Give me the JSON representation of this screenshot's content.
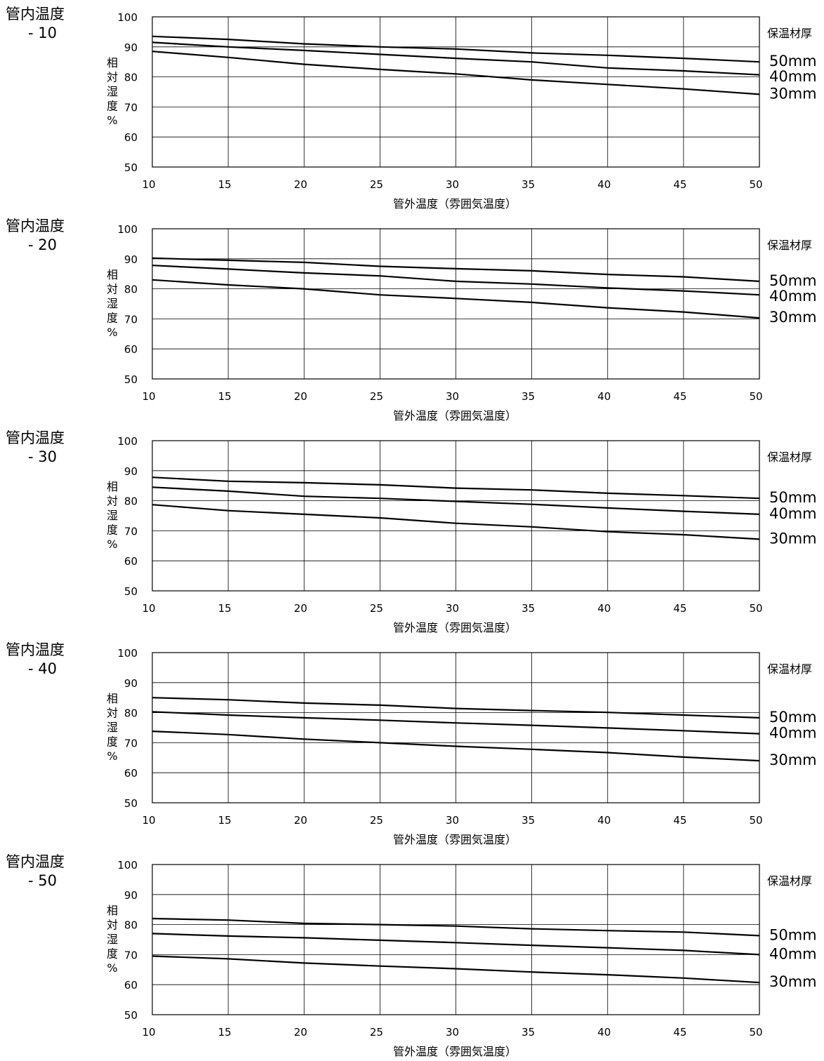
{
  "chart_data": [
    {
      "type": "line",
      "title": "管内温度",
      "subtitle": "- 10",
      "xlabel": "管外温度（雰囲気温度）",
      "ylabel": "相対湿度%",
      "legend_title": "保温材厚",
      "x": [
        10,
        15,
        20,
        25,
        30,
        35,
        40,
        45,
        50
      ],
      "xlim": [
        10,
        50
      ],
      "ylim": [
        50,
        100
      ],
      "xticks": [
        "10",
        "15",
        "20",
        "25",
        "30",
        "35",
        "40",
        "45",
        "50"
      ],
      "yticks": [
        "50",
        "60",
        "70",
        "80",
        "90",
        "100"
      ],
      "grid": true,
      "legend_position": "right",
      "series": [
        {
          "name": "50mm",
          "values": [
            93.5,
            92.5,
            91,
            90,
            89.3,
            88,
            87.2,
            86.2,
            85
          ]
        },
        {
          "name": "40mm",
          "values": [
            91.5,
            90,
            88.8,
            87.5,
            86.2,
            85,
            83,
            82,
            80.7
          ]
        },
        {
          "name": "30mm",
          "values": [
            88.5,
            86.5,
            84.2,
            82.5,
            81,
            79,
            77.5,
            76,
            74.2
          ]
        }
      ]
    },
    {
      "type": "line",
      "title": "管内温度",
      "subtitle": "- 20",
      "xlabel": "管外温度（雰囲気温度）",
      "ylabel": "相対湿度%",
      "legend_title": "保温材厚",
      "x": [
        10,
        15,
        20,
        25,
        30,
        35,
        40,
        45,
        50
      ],
      "xlim": [
        10,
        50
      ],
      "ylim": [
        50,
        100
      ],
      "xticks": [
        "10",
        "15",
        "20",
        "25",
        "30",
        "35",
        "40",
        "45",
        "50"
      ],
      "yticks": [
        "50",
        "60",
        "70",
        "80",
        "90",
        "100"
      ],
      "grid": true,
      "legend_position": "right",
      "series": [
        {
          "name": "50mm",
          "values": [
            90.2,
            89.5,
            88.8,
            87.5,
            86.7,
            86,
            84.8,
            84,
            82.5
          ]
        },
        {
          "name": "40mm",
          "values": [
            87.8,
            86.6,
            85.3,
            84.3,
            82.5,
            81.6,
            80.3,
            79.3,
            78
          ]
        },
        {
          "name": "30mm",
          "values": [
            83,
            81.3,
            80,
            78,
            76.8,
            75.5,
            73.7,
            72.3,
            70.3
          ]
        }
      ]
    },
    {
      "type": "line",
      "title": "管内温度",
      "subtitle": "- 30",
      "xlabel": "管外温度（雰囲気温度）",
      "ylabel": "相対湿度%",
      "legend_title": "保温材厚",
      "x": [
        10,
        15,
        20,
        25,
        30,
        35,
        40,
        45,
        50
      ],
      "xlim": [
        10,
        50
      ],
      "ylim": [
        50,
        100
      ],
      "xticks": [
        "10",
        "15",
        "20",
        "25",
        "30",
        "35",
        "40",
        "45",
        "50"
      ],
      "yticks": [
        "50",
        "60",
        "70",
        "80",
        "90",
        "100"
      ],
      "grid": true,
      "legend_position": "right",
      "series": [
        {
          "name": "50mm",
          "values": [
            87.8,
            86.5,
            86,
            85.3,
            84.2,
            83.6,
            82.5,
            81.7,
            80.8
          ]
        },
        {
          "name": "40mm",
          "values": [
            84.5,
            83.2,
            81.5,
            80.8,
            79.8,
            78.8,
            77.6,
            76.5,
            75.5
          ]
        },
        {
          "name": "30mm",
          "values": [
            78.7,
            76.7,
            75.5,
            74.3,
            72.5,
            71.3,
            69.7,
            68.7,
            67.2
          ]
        }
      ]
    },
    {
      "type": "line",
      "title": "管内温度",
      "subtitle": "- 40",
      "xlabel": "管外温度（雰囲気温度）",
      "ylabel": "相対湿度%",
      "legend_title": "保温材厚",
      "x": [
        10,
        15,
        20,
        25,
        30,
        35,
        40,
        45,
        50
      ],
      "xlim": [
        10,
        50
      ],
      "ylim": [
        50,
        100
      ],
      "xticks": [
        "10",
        "15",
        "20",
        "25",
        "30",
        "35",
        "40",
        "45",
        "50"
      ],
      "yticks": [
        "50",
        "60",
        "70",
        "80",
        "90",
        "100"
      ],
      "grid": true,
      "legend_position": "right",
      "series": [
        {
          "name": "50mm",
          "values": [
            85,
            84.3,
            83.2,
            82.5,
            81.4,
            80.7,
            80.1,
            79.2,
            78.3
          ]
        },
        {
          "name": "40mm",
          "values": [
            80.3,
            79.2,
            78.3,
            77.5,
            76.6,
            75.8,
            74.9,
            74,
            73
          ]
        },
        {
          "name": "30mm",
          "values": [
            73.8,
            72.7,
            71.2,
            70,
            68.8,
            67.8,
            66.7,
            65.2,
            64
          ]
        }
      ]
    },
    {
      "type": "line",
      "title": "管内温度",
      "subtitle": "- 50",
      "xlabel": "管外温度（雰囲気温度）",
      "ylabel": "相対湿度%",
      "legend_title": "保温材厚",
      "x": [
        10,
        15,
        20,
        25,
        30,
        35,
        40,
        45,
        50
      ],
      "xlim": [
        10,
        50
      ],
      "ylim": [
        50,
        100
      ],
      "xticks": [
        "10",
        "15",
        "20",
        "25",
        "30",
        "35",
        "40",
        "45",
        "50"
      ],
      "yticks": [
        "50",
        "60",
        "70",
        "80",
        "90",
        "100"
      ],
      "grid": true,
      "legend_position": "right",
      "series": [
        {
          "name": "50mm",
          "values": [
            82,
            81.5,
            80.4,
            80,
            79.5,
            78.6,
            78,
            77.5,
            76.3
          ]
        },
        {
          "name": "40mm",
          "values": [
            77,
            76.2,
            75.6,
            74.8,
            74,
            73.1,
            72.3,
            71.4,
            70
          ]
        },
        {
          "name": "30mm",
          "values": [
            69.5,
            68.6,
            67.2,
            66.2,
            65.3,
            64.2,
            63.3,
            62.2,
            60.7
          ]
        }
      ]
    }
  ]
}
